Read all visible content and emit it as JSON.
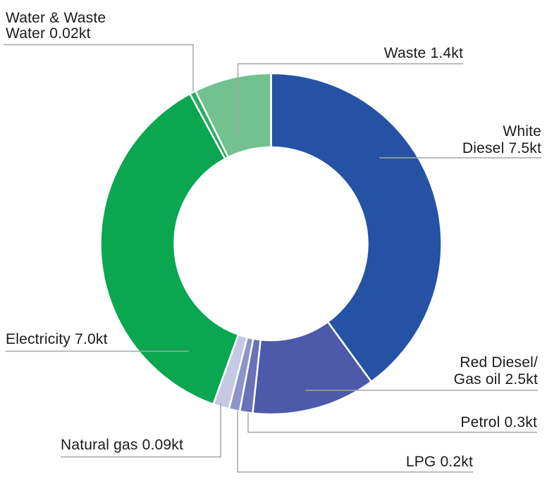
{
  "chart_data": {
    "type": "donut",
    "unit": "kt",
    "legend_position": "callout-labels",
    "segments": [
      {
        "id": "white_diesel",
        "label": "White Diesel",
        "value": 7.5,
        "display": "White Diesel 7.5kt",
        "color": "#2552A5",
        "start_deg": 0,
        "end_deg": 144.0
      },
      {
        "id": "red_diesel",
        "label": "Red Diesel/Gas oil",
        "value": 2.5,
        "display": "Red Diesel/ Gas oil 2.5kt",
        "color": "#4D59AB",
        "start_deg": 144.0,
        "end_deg": 186.2
      },
      {
        "id": "petrol",
        "label": "Petrol",
        "value": 0.3,
        "display": "Petrol 0.3kt",
        "color": "#6972B8",
        "start_deg": 186.2,
        "end_deg": 190.6
      },
      {
        "id": "lpg",
        "label": "LPG",
        "value": 0.2,
        "display": "LPG 0.2kt",
        "color": "#8C95C7",
        "start_deg": 190.6,
        "end_deg": 194.3
      },
      {
        "id": "natural_gas",
        "label": "Natural gas",
        "value": 0.09,
        "display": "Natural gas 0.09kt",
        "color": "#C5C9E5",
        "start_deg": 194.3,
        "end_deg": 199.8
      },
      {
        "id": "electricity",
        "label": "Electricity",
        "value": 7.0,
        "display": "Electricity 7.0kt",
        "color": "#0AA650",
        "start_deg": 199.8,
        "end_deg": 331.6
      },
      {
        "id": "water_waste_water",
        "label": "Water & Waste Water",
        "value": 0.02,
        "display": "Water & Waste Water 0.02kt",
        "color": "#2DAB64",
        "start_deg": 331.6,
        "end_deg": 333.7
      },
      {
        "id": "waste",
        "label": "Waste",
        "value": 1.4,
        "display": "Waste 1.4kt",
        "color": "#72C18E",
        "start_deg": 333.7,
        "end_deg": 360
      }
    ]
  },
  "labels": {
    "water_waste_water": {
      "line1": "Water & Waste",
      "line2": "Water 0.02kt"
    },
    "waste": {
      "line1": "Waste 1.4kt"
    },
    "white_diesel": {
      "line1": "White",
      "line2": "Diesel 7.5kt"
    },
    "red_diesel": {
      "line1": "Red Diesel/",
      "line2": "Gas oil 2.5kt"
    },
    "petrol": {
      "line1": "Petrol 0.3kt"
    },
    "lpg": {
      "line1": "LPG 0.2kt"
    },
    "natural_gas": {
      "line1": "Natural gas 0.09kt"
    },
    "electricity": {
      "line1": "Electricity 7.0kt"
    }
  },
  "colors": {
    "background": "#FFFFFF",
    "text": "#1A1A1A",
    "leader_line": "#A6A6A6"
  }
}
